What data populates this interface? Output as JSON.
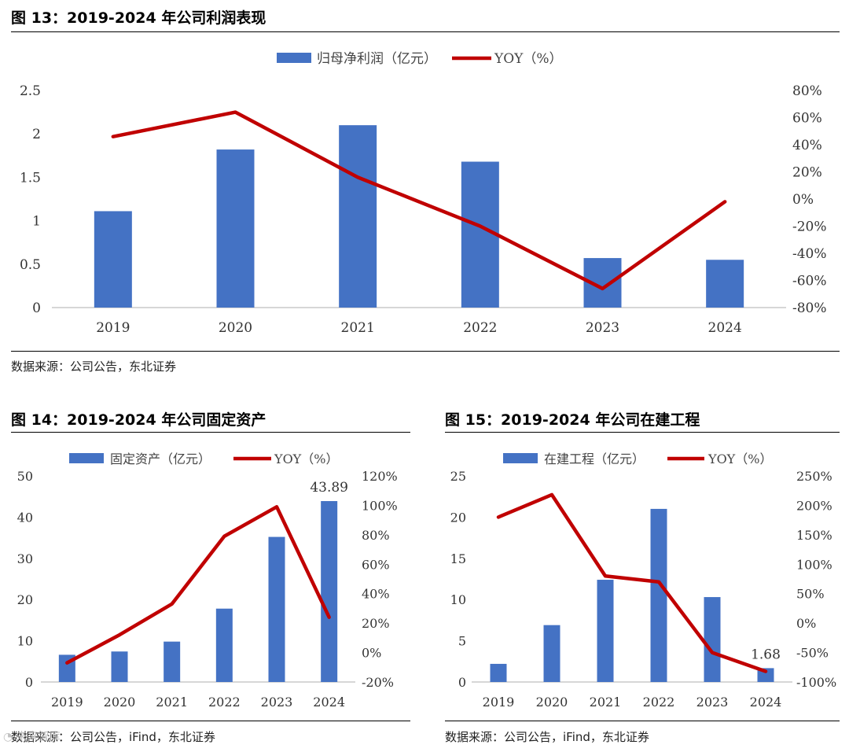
{
  "figures": [
    {
      "title": "图 13：2019-2024 年公司利润表现",
      "source": "数据来源：公司公告，东北证券"
    },
    {
      "title": "图 14：2019-2024 年公司固定资产",
      "source": "数据来源：公司公告，iFind，东北证券"
    },
    {
      "title": "图 15：2019-2024 年公司在建工程",
      "source": "数据来源：公司公告，iFind，东北证券"
    }
  ],
  "colors": {
    "bar": "#4472C4",
    "line": "#C00000",
    "axis": "#BFBFBF"
  },
  "chart_data": [
    {
      "type": "bar",
      "title": "",
      "categories": [
        "2019",
        "2020",
        "2021",
        "2022",
        "2023",
        "2024"
      ],
      "series": [
        {
          "name": "归母净利润（亿元）",
          "type": "bar",
          "axis": "left",
          "values": [
            1.11,
            1.82,
            2.1,
            1.68,
            0.57,
            0.55
          ]
        },
        {
          "name": "YOY（%）",
          "type": "line",
          "axis": "right",
          "values": [
            0.46,
            0.64,
            0.16,
            -0.2,
            -0.66,
            -0.02
          ]
        }
      ],
      "ylim": [
        0,
        2.5
      ],
      "yticks": [
        "0",
        "0.5",
        "1",
        "1.5",
        "2",
        "2.5"
      ],
      "y2lim": [
        -0.8,
        0.8
      ],
      "y2ticks": [
        "-80%",
        "-60%",
        "-40%",
        "-20%",
        "0%",
        "20%",
        "40%",
        "60%",
        "80%"
      ],
      "legend": "top-center",
      "grid": false
    },
    {
      "type": "bar",
      "title": "",
      "categories": [
        "2019",
        "2020",
        "2021",
        "2022",
        "2023",
        "2024"
      ],
      "series": [
        {
          "name": "固定资产（亿元）",
          "type": "bar",
          "axis": "left",
          "values": [
            6.6,
            7.4,
            9.8,
            17.8,
            35.2,
            43.89
          ]
        },
        {
          "name": "YOY（%）",
          "type": "line",
          "axis": "right",
          "values": [
            -0.07,
            0.12,
            0.33,
            0.79,
            0.99,
            0.24
          ]
        }
      ],
      "data_labels": [
        {
          "index": 5,
          "text": "43.89"
        }
      ],
      "ylim": [
        0,
        50
      ],
      "yticks": [
        "0",
        "10",
        "20",
        "30",
        "40",
        "50"
      ],
      "y2lim": [
        -0.2,
        1.2
      ],
      "y2ticks": [
        "-20%",
        "0%",
        "20%",
        "40%",
        "60%",
        "80%",
        "100%",
        "120%"
      ],
      "legend": "top-center",
      "grid": false
    },
    {
      "type": "bar",
      "title": "",
      "categories": [
        "2019",
        "2020",
        "2021",
        "2022",
        "2023",
        "2024"
      ],
      "series": [
        {
          "name": "在建工程（亿元）",
          "type": "bar",
          "axis": "left",
          "values": [
            2.2,
            6.9,
            12.4,
            21.0,
            10.3,
            1.68
          ]
        },
        {
          "name": "YOY（%）",
          "type": "line",
          "axis": "right",
          "values": [
            1.8,
            2.18,
            0.8,
            0.7,
            -0.5,
            -0.82
          ]
        }
      ],
      "data_labels": [
        {
          "index": 5,
          "text": "1.68"
        }
      ],
      "ylim": [
        0,
        25
      ],
      "yticks": [
        "0",
        "5",
        "10",
        "15",
        "20",
        "25"
      ],
      "y2lim": [
        -1.0,
        2.5
      ],
      "y2ticks": [
        "-100%",
        "-50%",
        "0%",
        "50%",
        "100%",
        "150%",
        "200%",
        "250%"
      ],
      "legend": "top-center",
      "grid": false
    }
  ],
  "watermark": "未来智库"
}
